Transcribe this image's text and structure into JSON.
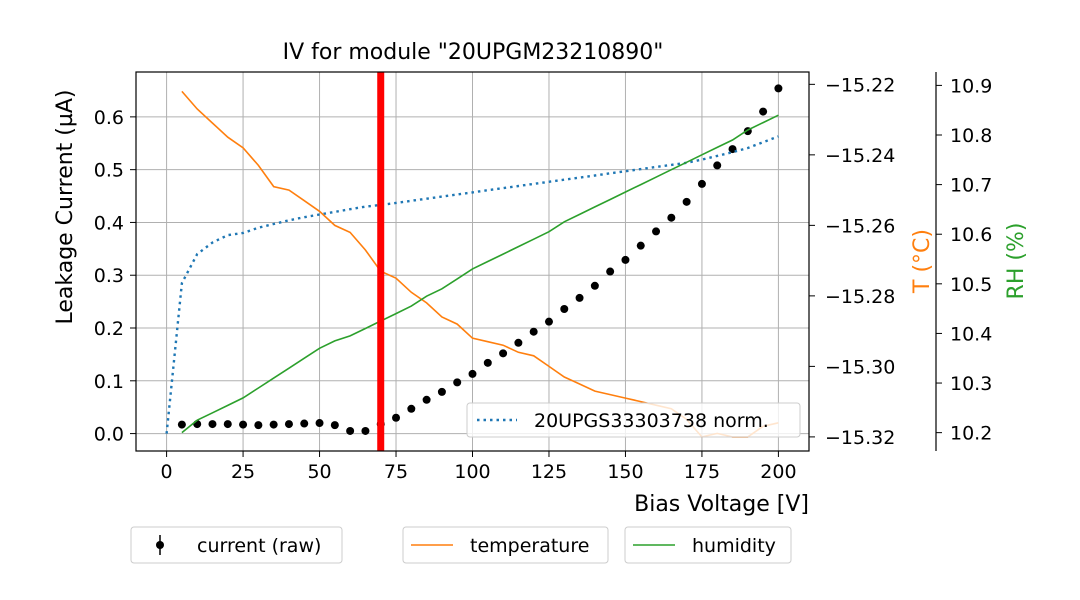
{
  "chart_data": {
    "type": "line",
    "title": "IV for module \"20UPGM23210890\"",
    "xlabel": "Bias Voltage [V]",
    "ylabel": "Leakage Current (µA)",
    "y2label": "T (°C)",
    "y3label": "RH (%)",
    "xlim": [
      -10,
      210
    ],
    "ylim": [
      -0.033,
      0.685
    ],
    "y2lim": [
      -15.324,
      -15.2165
    ],
    "y3lim": [
      10.163,
      10.927
    ],
    "xticks": [
      "0",
      "25",
      "50",
      "75",
      "100",
      "125",
      "150",
      "175",
      "200"
    ],
    "yticks": [
      "0.0",
      "0.1",
      "0.2",
      "0.3",
      "0.4",
      "0.5",
      "0.6"
    ],
    "y2ticks": [
      "−15.22",
      "−15.24",
      "−15.26",
      "−15.28",
      "−15.30",
      "−15.32"
    ],
    "y3ticks": [
      "10.9",
      "10.8",
      "10.7",
      "10.6",
      "10.5",
      "10.4",
      "10.3",
      "10.2"
    ],
    "vline_x": 70,
    "series": [
      {
        "name": "current (raw)",
        "axis": "left",
        "style": "points",
        "color": "#000000",
        "x": [
          5,
          10,
          15,
          20,
          25,
          30,
          35,
          40,
          45,
          50,
          55,
          60,
          65,
          70,
          75,
          80,
          85,
          90,
          95,
          100,
          105,
          110,
          115,
          120,
          125,
          130,
          135,
          140,
          145,
          150,
          155,
          160,
          165,
          170,
          175,
          180,
          185,
          190,
          195,
          200
        ],
        "y": [
          0.017,
          0.018,
          0.018,
          0.018,
          0.017,
          0.016,
          0.017,
          0.018,
          0.019,
          0.02,
          0.016,
          0.005,
          0.005,
          0.018,
          0.03,
          0.047,
          0.064,
          0.079,
          0.097,
          0.113,
          0.134,
          0.152,
          0.172,
          0.193,
          0.212,
          0.236,
          0.257,
          0.28,
          0.307,
          0.329,
          0.356,
          0.383,
          0.409,
          0.439,
          0.473,
          0.508,
          0.539,
          0.573,
          0.61,
          0.654
        ]
      },
      {
        "name": "20UPGS33303738 norm.",
        "axis": "left",
        "style": "dotted",
        "color": "#1f77b4",
        "x": [
          0,
          5,
          10,
          15,
          20,
          25,
          30,
          35,
          40,
          45,
          50,
          55,
          60,
          65,
          70,
          75,
          80,
          85,
          90,
          95,
          100,
          105,
          110,
          115,
          120,
          125,
          130,
          135,
          140,
          145,
          150,
          155,
          160,
          165,
          170,
          175,
          180,
          185,
          190,
          195,
          200
        ],
        "y": [
          0.0,
          0.285,
          0.34,
          0.362,
          0.376,
          0.38,
          0.39,
          0.397,
          0.404,
          0.41,
          0.415,
          0.42,
          0.425,
          0.43,
          0.433,
          0.437,
          0.441,
          0.445,
          0.449,
          0.453,
          0.457,
          0.461,
          0.465,
          0.469,
          0.473,
          0.477,
          0.481,
          0.485,
          0.489,
          0.493,
          0.497,
          0.501,
          0.505,
          0.509,
          0.513,
          0.519,
          0.526,
          0.533,
          0.541,
          0.552,
          0.563
        ]
      },
      {
        "name": "temperature",
        "axis": "right",
        "style": "line",
        "color": "#ff7f0e",
        "x": [
          5,
          10,
          15,
          20,
          25,
          30,
          35,
          40,
          45,
          50,
          55,
          60,
          65,
          70,
          75,
          80,
          85,
          90,
          95,
          100,
          105,
          110,
          115,
          120,
          125,
          130,
          135,
          140,
          145,
          150,
          155,
          160,
          165,
          170,
          175,
          180,
          185,
          190,
          195,
          200
        ],
        "y": [
          -15.222,
          -15.227,
          -15.231,
          -15.235,
          -15.238,
          -15.243,
          -15.249,
          -15.25,
          -15.253,
          -15.256,
          -15.26,
          -15.262,
          -15.267,
          -15.273,
          -15.275,
          -15.279,
          -15.282,
          -15.286,
          -15.288,
          -15.292,
          -15.293,
          -15.294,
          -15.296,
          -15.297,
          -15.3,
          -15.303,
          -15.305,
          -15.307,
          -15.308,
          -15.309,
          -15.31,
          -15.311,
          -15.312,
          -15.315,
          -15.32,
          -15.319,
          -15.32,
          -15.32,
          -15.317,
          -15.316
        ]
      },
      {
        "name": "humidity",
        "axis": "right2",
        "style": "line",
        "color": "#2ca02c",
        "x": [
          5,
          10,
          15,
          20,
          25,
          30,
          35,
          40,
          45,
          50,
          55,
          60,
          65,
          70,
          75,
          80,
          85,
          90,
          95,
          100,
          105,
          110,
          115,
          120,
          125,
          130,
          135,
          140,
          145,
          150,
          155,
          160,
          165,
          170,
          175,
          180,
          185,
          190,
          195,
          200
        ],
        "y": [
          10.2,
          10.225,
          10.24,
          10.255,
          10.27,
          10.29,
          10.31,
          10.33,
          10.35,
          10.37,
          10.385,
          10.395,
          10.41,
          10.425,
          10.44,
          10.455,
          10.475,
          10.49,
          10.51,
          10.53,
          10.545,
          10.56,
          10.575,
          10.59,
          10.605,
          10.625,
          10.64,
          10.655,
          10.67,
          10.685,
          10.7,
          10.715,
          10.73,
          10.745,
          10.76,
          10.775,
          10.79,
          10.81,
          10.825,
          10.84
        ]
      }
    ],
    "legend_upper": "lower-right",
    "legend_lower": "below plot"
  }
}
